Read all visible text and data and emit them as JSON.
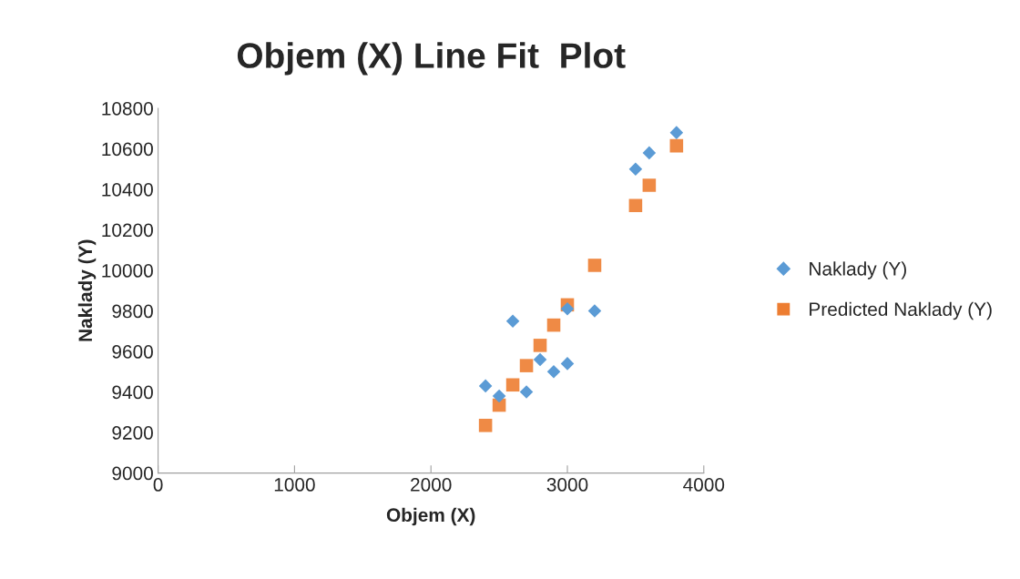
{
  "chart_data": {
    "type": "scatter",
    "title": "Objem (X) Line Fit  Plot",
    "xlabel": "Objem (X)",
    "ylabel": "Naklady (Y)",
    "x": [
      2400,
      2500,
      2600,
      2700,
      2800,
      2900,
      3000,
      3000,
      3200,
      3500,
      3600,
      3800
    ],
    "series": [
      {
        "name": "Naklady (Y)",
        "color": "#5b9bd5",
        "marker": "diamond",
        "values": [
          9430,
          9380,
          9750,
          9400,
          9560,
          9500,
          9540,
          9810,
          9800,
          10500,
          10580,
          10680
        ]
      },
      {
        "name": "Predicted Naklady (Y)",
        "color": "#ed7d31",
        "marker": "square",
        "x": [
          2400,
          2500,
          2600,
          2700,
          2800,
          2900,
          3000,
          3200,
          3500,
          3600,
          3800
        ],
        "values": [
          9235,
          9335,
          9435,
          9530,
          9630,
          9730,
          9830,
          10025,
          10320,
          10420,
          10615
        ]
      }
    ],
    "xlim": [
      0,
      4000
    ],
    "xticks": [
      0,
      1000,
      2000,
      3000,
      4000
    ],
    "ylim": [
      9000,
      10800
    ],
    "yticks": [
      9000,
      9200,
      9400,
      9600,
      9800,
      10000,
      10200,
      10400,
      10600,
      10800
    ],
    "grid": false,
    "legend": "right"
  }
}
